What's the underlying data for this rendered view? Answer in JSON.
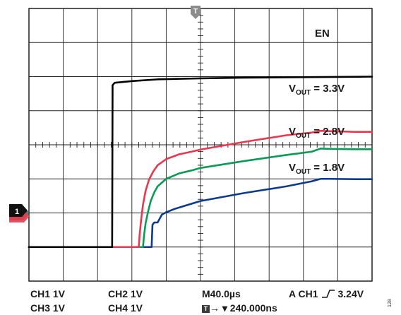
{
  "chart_data": {
    "type": "line",
    "title": "",
    "xlabel": "",
    "ylabel": "",
    "x_unit": "µs",
    "grid": true,
    "xlim": [
      0,
      400
    ],
    "ylim": [
      -1,
      7
    ],
    "x_divisions": 10,
    "y_divisions": 8,
    "ch1_ground_marker": "1",
    "series": [
      {
        "name": "EN",
        "color": "#000000",
        "x": [
          0,
          97,
          97.5,
          100,
          120,
          150,
          200,
          250,
          300,
          400
        ],
        "y": [
          0,
          0,
          4.75,
          4.82,
          4.87,
          4.92,
          4.95,
          4.97,
          4.98,
          5.0
        ]
      },
      {
        "name": "V_OUT = 3.3V",
        "color": "#e8384f",
        "x": [
          0,
          128,
          129,
          131,
          133,
          136,
          140,
          145,
          150,
          160,
          175,
          190,
          200,
          250,
          300,
          330,
          340,
          350,
          380,
          400
        ],
        "y": [
          0,
          0,
          0.35,
          0.85,
          1.25,
          1.65,
          1.98,
          2.22,
          2.4,
          2.58,
          2.72,
          2.8,
          2.86,
          3.08,
          3.28,
          3.36,
          3.41,
          3.4,
          3.38,
          3.38
        ]
      },
      {
        "name": "V_OUT = 2.8V",
        "color": "#0a9a55",
        "x": [
          0,
          133,
          134,
          136,
          139,
          142,
          146,
          150,
          160,
          175,
          190,
          200,
          250,
          300,
          330,
          340,
          350,
          380,
          400
        ],
        "y": [
          0,
          0,
          0.3,
          0.7,
          1.05,
          1.35,
          1.6,
          1.78,
          2.0,
          2.16,
          2.25,
          2.32,
          2.52,
          2.7,
          2.8,
          2.89,
          2.88,
          2.87,
          2.87
        ]
      },
      {
        "name": "V_OUT = 1.8V",
        "color": "#0d3a8c",
        "x": [
          0,
          143,
          144,
          146,
          150,
          155,
          160,
          170,
          200,
          250,
          300,
          330,
          340,
          350,
          380,
          400
        ],
        "y": [
          0,
          0,
          0.65,
          0.72,
          0.72,
          0.95,
          1.02,
          1.12,
          1.35,
          1.58,
          1.78,
          1.93,
          2.0,
          2.0,
          1.99,
          1.99
        ]
      }
    ]
  },
  "labels": {
    "en": "EN",
    "vout_33": {
      "main": "V",
      "sub": "OUT",
      "rest": " = 3.3V"
    },
    "vout_28": {
      "main": "V",
      "sub": "OUT",
      "rest": " = 2.8V"
    },
    "vout_18": {
      "main": "V",
      "sub": "OUT",
      "rest": " = 1.8V"
    }
  },
  "footer": {
    "ch1": "CH1  1V",
    "ch2": "CH2  1V",
    "ch3": "CH3  1V",
    "ch4": "CH4  1V",
    "timebase": "M40.0µs",
    "trigger": "A  CH1",
    "trigger_level": "3.24V",
    "trigger_marker": "T",
    "trigger_delay": "→ ▾ 240.000ns"
  },
  "figure_id": "128"
}
